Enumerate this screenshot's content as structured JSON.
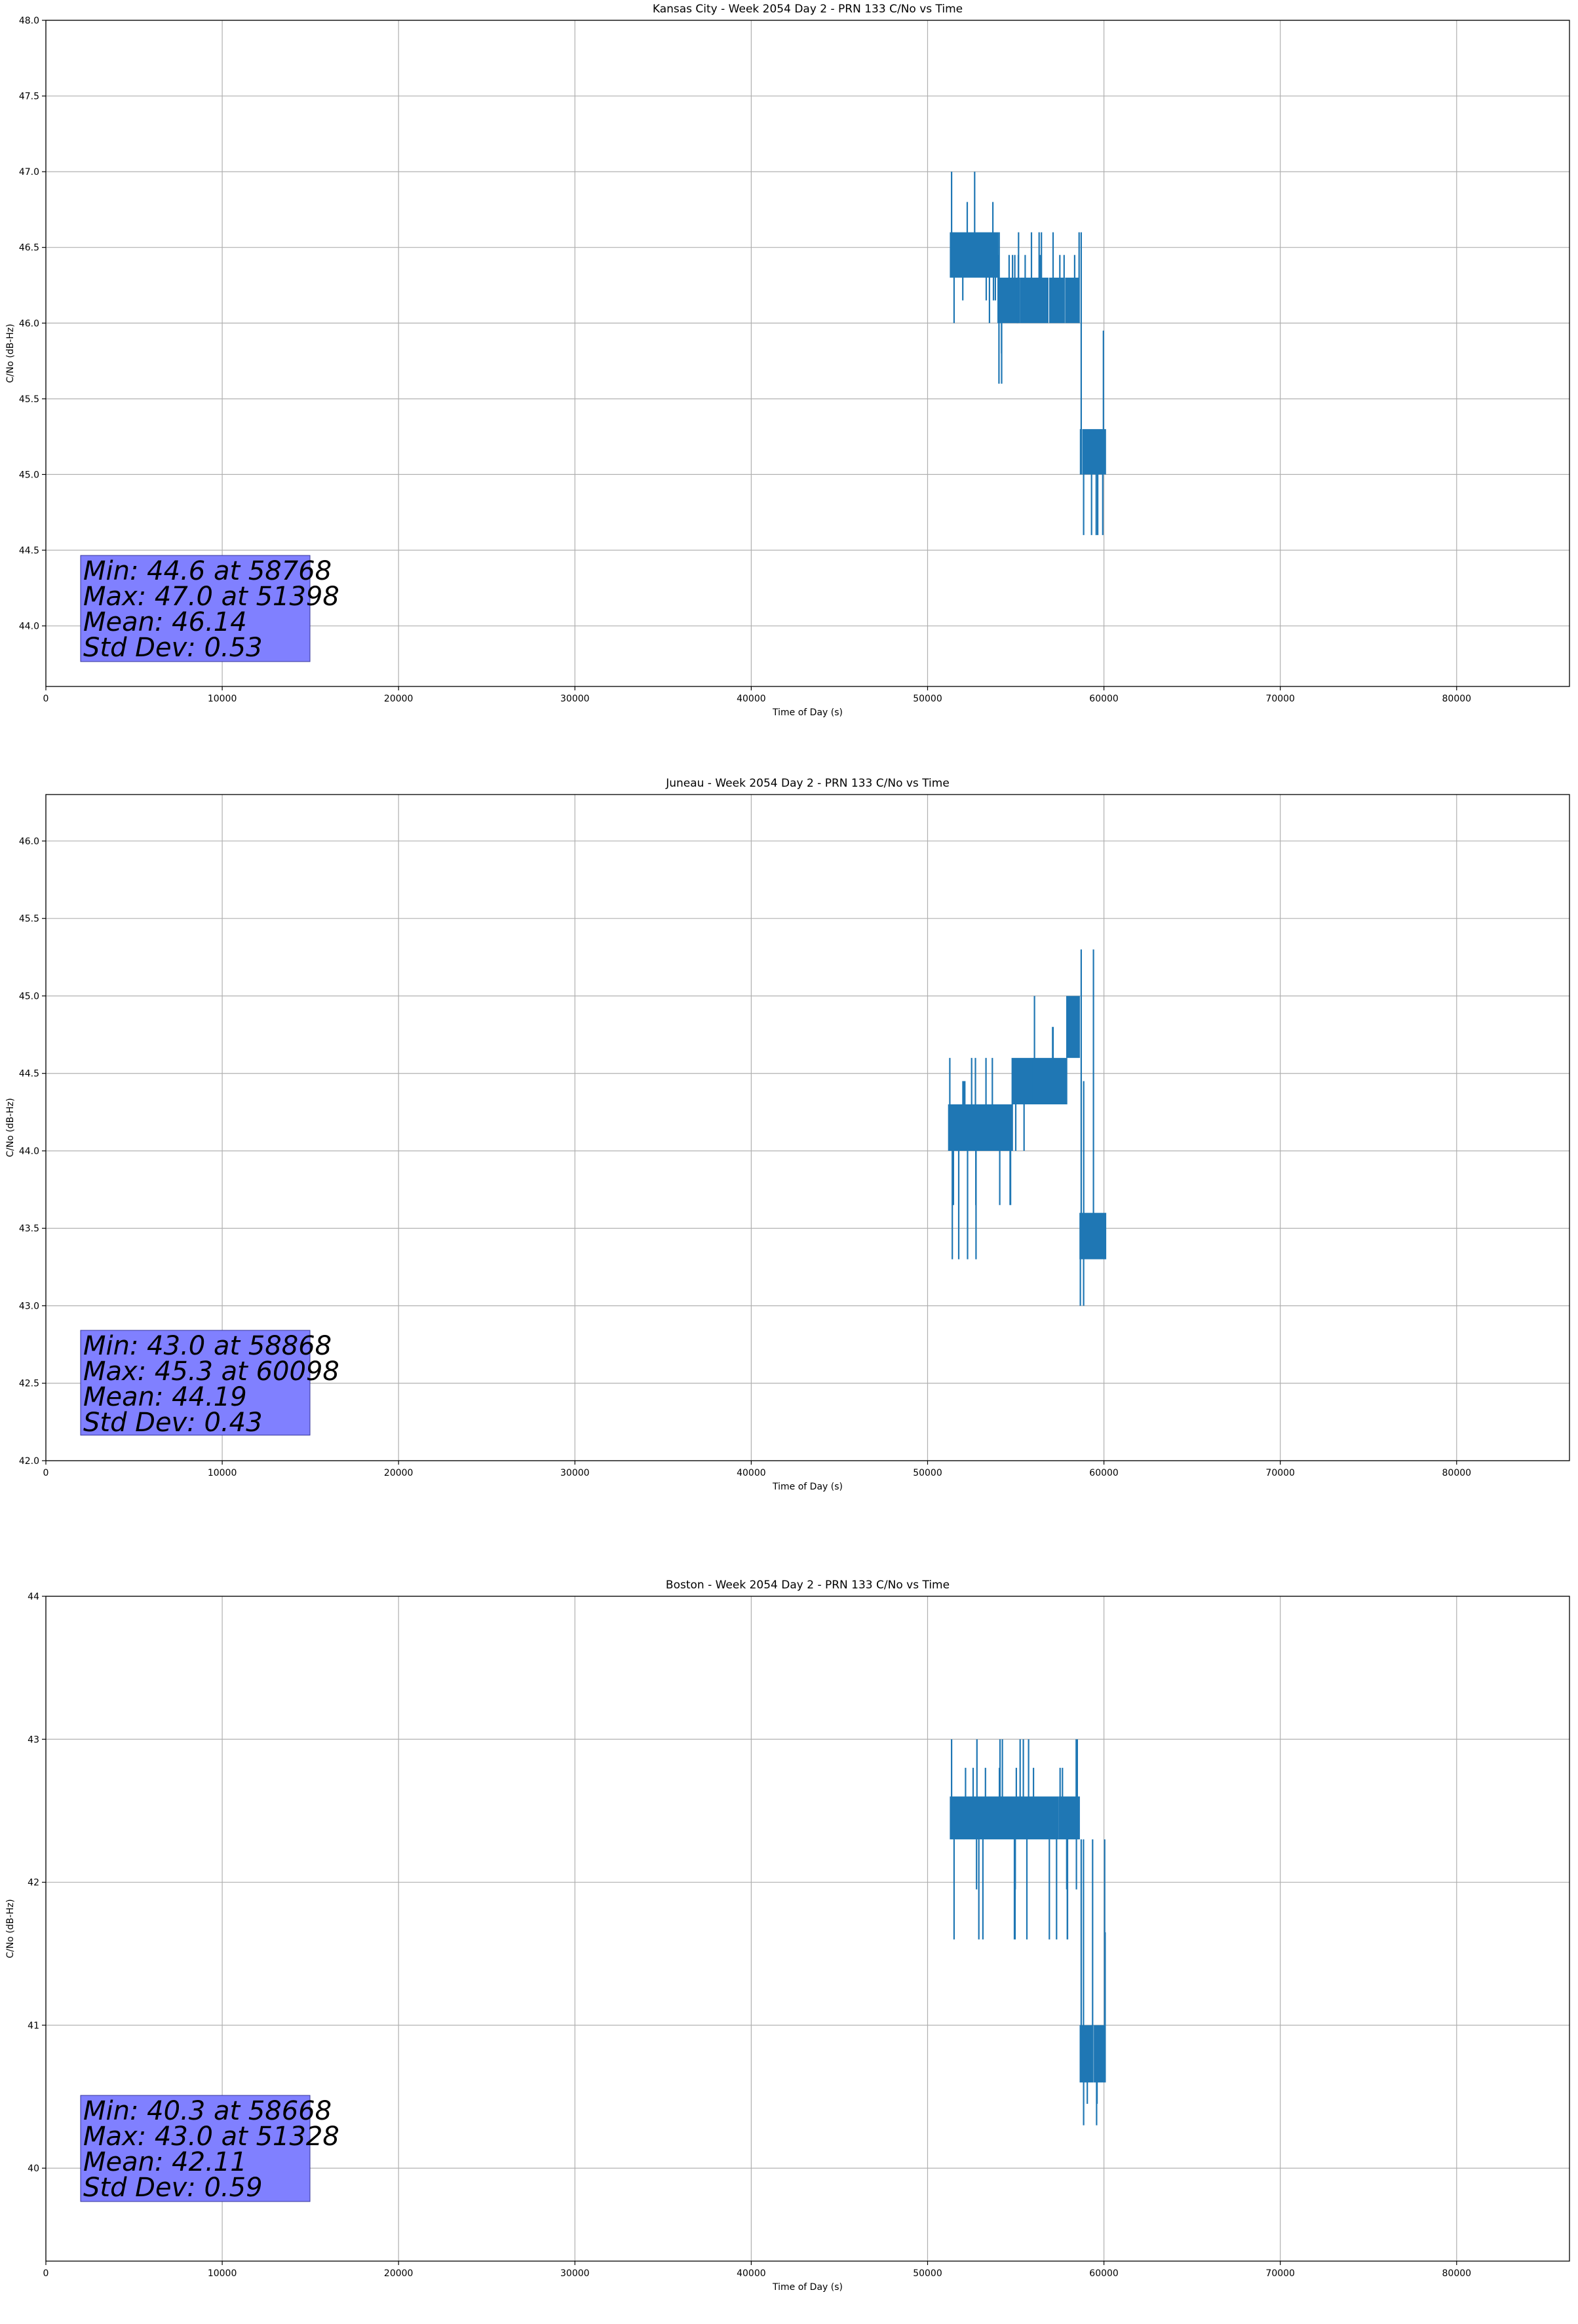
{
  "chart_data": [
    {
      "type": "line",
      "title": "Kansas City - Week 2054 Day 2 - PRN 133 C/No vs Time",
      "xlabel": "Time of Day (s)",
      "ylabel": "C/No (dB-Hz)",
      "xlim": [
        0,
        86400
      ],
      "ylim": [
        43.6,
        48.0
      ],
      "xticks": [
        0,
        10000,
        20000,
        30000,
        40000,
        50000,
        60000,
        70000,
        80000
      ],
      "yticks": [
        44.0,
        44.5,
        45.0,
        45.5,
        46.0,
        46.5,
        47.0,
        47.5,
        48.0
      ],
      "ytick_decimals": 1,
      "grid": true,
      "color": "#1f77b4",
      "stats": [
        "Min: 44.6 at 58768",
        "Max: 47.0 at 51398",
        "Mean: 46.14",
        "Std Dev: 0.53"
      ],
      "series": [
        {
          "name": "C/No",
          "segments": [
            {
              "x0": 51300,
              "x1": 54000,
              "base": [
                46.3,
                46.6
              ],
              "spikes": [
                46.0,
                47.0
              ],
              "density": 0.8
            },
            {
              "x0": 54000,
              "x1": 55100,
              "base": [
                46.0,
                46.3
              ],
              "spikes": [
                45.6,
                46.6
              ],
              "density": 0.45
            },
            {
              "x0": 55100,
              "x1": 58600,
              "base": [
                46.0,
                46.3
              ],
              "spikes": [
                46.0,
                46.6
              ],
              "density": 0.55
            },
            {
              "x0": 58650,
              "x1": 60100,
              "base": [
                45.0,
                45.3
              ],
              "spikes": [
                44.6,
                46.6
              ],
              "density": 0.5
            }
          ]
        }
      ]
    },
    {
      "type": "line",
      "title": "Juneau - Week 2054 Day 2 - PRN 133 C/No vs Time",
      "xlabel": "Time of Day (s)",
      "ylabel": "C/No (dB-Hz)",
      "xlim": [
        0,
        86400
      ],
      "ylim": [
        42.0,
        46.3
      ],
      "xticks": [
        0,
        10000,
        20000,
        30000,
        40000,
        50000,
        60000,
        70000,
        80000
      ],
      "yticks": [
        42.0,
        42.5,
        43.0,
        43.5,
        44.0,
        44.5,
        45.0,
        45.5,
        46.0
      ],
      "ytick_decimals": 1,
      "grid": true,
      "color": "#1f77b4",
      "stats": [
        "Min: 43.0 at 58868",
        "Max: 45.3 at 60098",
        "Mean: 44.19",
        "Std Dev: 0.43"
      ],
      "series": [
        {
          "name": "C/No",
          "segments": [
            {
              "x0": 51200,
              "x1": 54800,
              "base": [
                44.0,
                44.3
              ],
              "spikes": [
                43.3,
                44.6
              ],
              "density": 0.8
            },
            {
              "x0": 54800,
              "x1": 56000,
              "base": [
                44.3,
                44.6
              ],
              "spikes": [
                44.0,
                44.6
              ],
              "density": 0.6
            },
            {
              "x0": 56000,
              "x1": 57900,
              "base": [
                44.3,
                44.6
              ],
              "spikes": [
                44.3,
                45.0
              ],
              "density": 0.75
            },
            {
              "x0": 57900,
              "x1": 58600,
              "base": [
                44.6,
                45.0
              ],
              "spikes": [
                44.6,
                45.0
              ],
              "density": 0.7
            },
            {
              "x0": 58650,
              "x1": 60100,
              "base": [
                43.3,
                43.6
              ],
              "spikes": [
                43.0,
                45.3
              ],
              "density": 0.5
            }
          ]
        }
      ]
    },
    {
      "type": "line",
      "title": "Boston - Week 2054 Day 2 - PRN 133 C/No vs Time",
      "xlabel": "Time of Day (s)",
      "ylabel": "C/No (dB-Hz)",
      "xlim": [
        0,
        86400
      ],
      "ylim": [
        39.35,
        44.0
      ],
      "xticks": [
        0,
        10000,
        20000,
        30000,
        40000,
        50000,
        60000,
        70000,
        80000
      ],
      "yticks": [
        40,
        41,
        42,
        43,
        44
      ],
      "ytick_decimals": 0,
      "grid": true,
      "color": "#1f77b4",
      "stats": [
        "Min: 40.3 at 58668",
        "Max: 43.0 at 51328",
        "Mean: 42.11",
        "Std Dev: 0.59"
      ],
      "series": [
        {
          "name": "C/No",
          "segments": [
            {
              "x0": 51300,
              "x1": 58600,
              "base": [
                42.3,
                42.6
              ],
              "spikes": [
                41.6,
                43.0
              ],
              "density": 0.7
            },
            {
              "x0": 58650,
              "x1": 60100,
              "base": [
                40.6,
                41.0
              ],
              "spikes": [
                40.3,
                42.3
              ],
              "density": 0.5
            }
          ]
        }
      ]
    }
  ]
}
